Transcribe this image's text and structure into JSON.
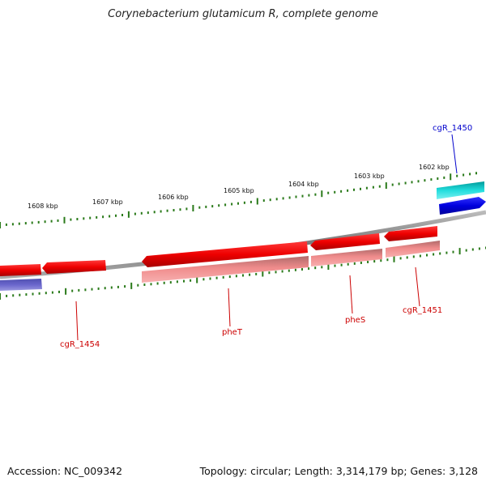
{
  "title": "Corynebacterium glutamicum R, complete genome",
  "footer": {
    "accession": "Accession: NC_009342",
    "topology": "Topology: circular; Length: 3,314,179 bp; Genes: 3,128"
  },
  "scale_labels": [
    "1602 kbp",
    "1603 kbp",
    "1604 kbp",
    "1605 kbp",
    "1606 kbp",
    "1607 kbp",
    "1608 kbp"
  ],
  "genes": [
    {
      "name": "cgR_1450",
      "color": "#0000cc"
    },
    {
      "name": "cgR_1451",
      "color": "#cc0000"
    },
    {
      "name": "pheS",
      "color": "#cc0000"
    },
    {
      "name": "pheT",
      "color": "#cc0000"
    },
    {
      "name": "cgR_1454",
      "color": "#cc0000"
    }
  ],
  "colors": {
    "cds_forward": "#ee0000",
    "rna_forward": "#ee7a7a",
    "cds_reverse": "#0000dd",
    "rna_reverse": "#6a66cc",
    "cyan_feature": "#00cccc",
    "tick": "#2a7a1a",
    "backbone": "#888888"
  }
}
